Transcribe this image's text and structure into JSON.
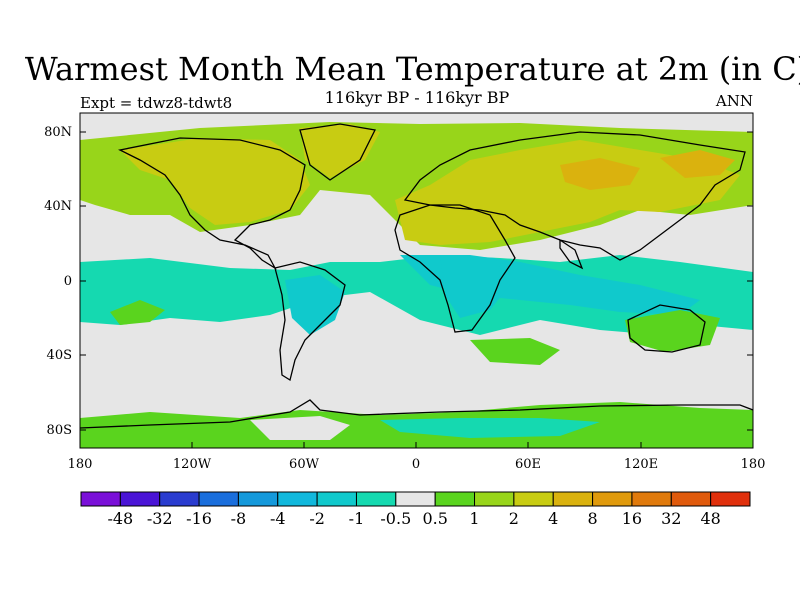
{
  "title": "Warmest Month Mean Temperature at 2m (in C)",
  "subtitle": "116kyr BP - 116kyr BP",
  "expt_label": "Expt = tdwz8-tdwt8",
  "season_label": "ANN",
  "map": {
    "projection": "cylindrical-equidistant",
    "lon_range": [
      -180,
      180
    ],
    "lat_range": [
      -90,
      90
    ],
    "ocean_land_fill": "#e6e6e6",
    "y_ticks": [
      "80N",
      "40N",
      "0",
      "40S",
      "80S"
    ],
    "x_ticks": [
      "180",
      "120W",
      "60W",
      "0",
      "60E",
      "120E",
      "180"
    ]
  },
  "colorbar": {
    "colors": [
      "#7a10d8",
      "#4a14d6",
      "#2a3ccf",
      "#1a6edc",
      "#1599db",
      "#11b8dc",
      "#10c9cc",
      "#15d9b0",
      "#e6e6e6",
      "#5ad41e",
      "#98d51a",
      "#c8cc12",
      "#dab20e",
      "#e09a0c",
      "#e07a0c",
      "#e05a0c",
      "#e0300c"
    ],
    "labels": [
      "-48",
      "-32",
      "-16",
      "-8",
      "-4",
      "-2",
      "-1",
      "-0.5",
      "0.5",
      "1",
      "2",
      "4",
      "8",
      "16",
      "32",
      "48"
    ]
  }
}
